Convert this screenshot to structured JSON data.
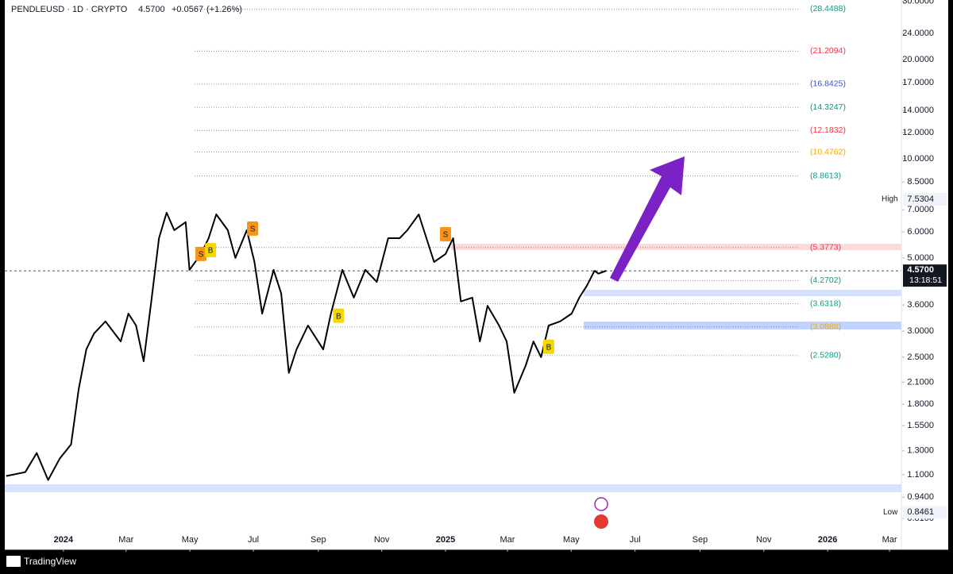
{
  "header": {
    "symbol_line": "PENDLEUSD · 1D · CRYPTO",
    "last": {
      "value": 4.57,
      "label": "4.5700"
    },
    "change": {
      "value": 0.0567,
      "label": "+0.0567"
    },
    "change_pct": {
      "value": 1.26,
      "label": "(+1.26%)"
    }
  },
  "footer": {
    "brand": "TradingView"
  },
  "chart_data": {
    "type": "line",
    "color": "#000000",
    "log_scale": true,
    "x": [
      2023.85,
      2023.9,
      2023.93,
      2023.96,
      2023.99,
      2024.02,
      2024.04,
      2024.06,
      2024.08,
      2024.11,
      2024.15,
      2024.17,
      2024.19,
      2024.21,
      2024.23,
      2024.25,
      2024.27,
      2024.29,
      2024.32,
      2024.33,
      2024.36,
      2024.38,
      2024.4,
      2024.43,
      2024.45,
      2024.48,
      2024.5,
      2024.52,
      2024.55,
      2024.57,
      2024.59,
      2024.61,
      2024.64,
      2024.68,
      2024.7,
      2024.73,
      2024.76,
      2024.79,
      2024.82,
      2024.85,
      2024.88,
      2024.9,
      2024.93,
      2024.97,
      2025.0,
      2025.02,
      2025.04,
      2025.07,
      2025.09,
      2025.11,
      2025.14,
      2025.16,
      2025.18,
      2025.21,
      2025.23,
      2025.25,
      2025.27,
      2025.3,
      2025.33,
      2025.35,
      2025.37,
      2025.39,
      2025.4,
      2025.42
    ],
    "values": [
      1.09,
      1.12,
      1.28,
      1.06,
      1.23,
      1.36,
      2.0,
      2.64,
      2.95,
      3.21,
      2.79,
      3.39,
      3.12,
      2.43,
      3.69,
      5.74,
      6.86,
      6.07,
      6.42,
      4.6,
      5.14,
      5.74,
      6.78,
      6.07,
      5.0,
      6.07,
      4.86,
      3.39,
      4.6,
      3.9,
      2.24,
      2.64,
      3.12,
      2.64,
      3.39,
      4.6,
      3.79,
      4.6,
      4.23,
      5.74,
      5.74,
      6.07,
      6.78,
      4.86,
      5.14,
      5.74,
      3.69,
      3.79,
      2.79,
      3.58,
      3.12,
      2.79,
      1.95,
      2.36,
      2.79,
      2.5,
      3.12,
      3.21,
      3.39,
      3.79,
      4.12,
      4.57,
      4.48,
      4.57
    ],
    "xlim": [
      2023.834,
      2026.193
    ],
    "xticks": [
      {
        "value": 2024.0,
        "label": "2024"
      },
      {
        "value": 2024.164,
        "label": "Mar"
      },
      {
        "value": 2024.331,
        "label": "May"
      },
      {
        "value": 2024.497,
        "label": "Jul"
      },
      {
        "value": 2024.667,
        "label": "Sep"
      },
      {
        "value": 2024.833,
        "label": "Nov"
      },
      {
        "value": 2025.0,
        "label": "2025"
      },
      {
        "value": 2025.162,
        "label": "Mar"
      },
      {
        "value": 2025.329,
        "label": "May"
      },
      {
        "value": 2025.496,
        "label": "Jul"
      },
      {
        "value": 2025.666,
        "label": "Sep"
      },
      {
        "value": 2025.833,
        "label": "Nov"
      },
      {
        "value": 2026.0,
        "label": "2026"
      },
      {
        "value": 2026.162,
        "label": "Mar"
      }
    ],
    "ylim": [
      0.653,
      30.3
    ],
    "yticks": [
      {
        "value": 30,
        "label": "30.0000"
      },
      {
        "value": 24,
        "label": "24.0000"
      },
      {
        "value": 20,
        "label": "20.0000"
      },
      {
        "value": 17,
        "label": "17.0000"
      },
      {
        "value": 14,
        "label": "14.0000"
      },
      {
        "value": 12,
        "label": "12.0000"
      },
      {
        "value": 10,
        "label": "10.0000"
      },
      {
        "value": 8.5,
        "label": "8.5000"
      },
      {
        "value": 7,
        "label": "7.0000"
      },
      {
        "value": 6,
        "label": "6.0000"
      },
      {
        "value": 5,
        "label": "5.0000"
      },
      {
        "value": 3.6,
        "label": "3.6000"
      },
      {
        "value": 3,
        "label": "3.0000"
      },
      {
        "value": 2.5,
        "label": "2.5000"
      },
      {
        "value": 2.1,
        "label": "2.1000"
      },
      {
        "value": 1.8,
        "label": "1.8000"
      },
      {
        "value": 1.55,
        "label": "1.5500"
      },
      {
        "value": 1.3,
        "label": "1.3000"
      },
      {
        "value": 1.1,
        "label": "1.1000"
      },
      {
        "value": 0.94,
        "label": "0.9400"
      },
      {
        "value": 0.81,
        "label": "0.8100"
      }
    ],
    "levels": [
      {
        "value": 28.4488,
        "label": "(28.4488)",
        "color": "#089981"
      },
      {
        "value": 21.2094,
        "label": "(21.2094)",
        "color": "#f23645"
      },
      {
        "value": 16.8425,
        "label": "(16.8425)",
        "color": "#3f51b5"
      },
      {
        "value": 14.3247,
        "label": "(14.3247)",
        "color": "#089981"
      },
      {
        "value": 12.1832,
        "label": "(12.1832)",
        "color": "#f23645"
      },
      {
        "value": 10.4762,
        "label": "(10.4762)",
        "color": "#f7a600"
      },
      {
        "value": 8.8613,
        "label": "(8.8613)",
        "color": "#089981"
      },
      {
        "value": 5.3773,
        "label": "(5.3773)",
        "color": "#f23645"
      },
      {
        "value": 4.2702,
        "label": "(4.2702)",
        "color": "#089981"
      },
      {
        "value": 3.6318,
        "label": "(3.6318)",
        "color": "#089981"
      },
      {
        "value": 3.0888,
        "label": "(3.0888)",
        "color": "#f7a600"
      },
      {
        "value": 2.528,
        "label": "(2.5280)",
        "color": "#089981"
      }
    ],
    "high": {
      "label": "High",
      "value": 7.5304
    },
    "low": {
      "label": "Low",
      "value": 0.8461
    },
    "last": {
      "value": 4.57,
      "label": "4.5700",
      "countdown": "13:18:51"
    },
    "annotations": [
      {
        "text": "S",
        "x": 2024.36,
        "y": 5.14,
        "color": "#f7931a"
      },
      {
        "text": "B",
        "x": 2024.385,
        "y": 5.28,
        "color": "#f5d800"
      },
      {
        "text": "S",
        "x": 2024.495,
        "y": 6.14,
        "color": "#f7931a"
      },
      {
        "text": "B",
        "x": 2024.72,
        "y": 3.34,
        "color": "#f5d800"
      },
      {
        "text": "S",
        "x": 2025.0,
        "y": 5.9,
        "color": "#f7931a"
      },
      {
        "text": "B",
        "x": 2025.27,
        "y": 2.69,
        "color": "#f5d800"
      }
    ]
  }
}
